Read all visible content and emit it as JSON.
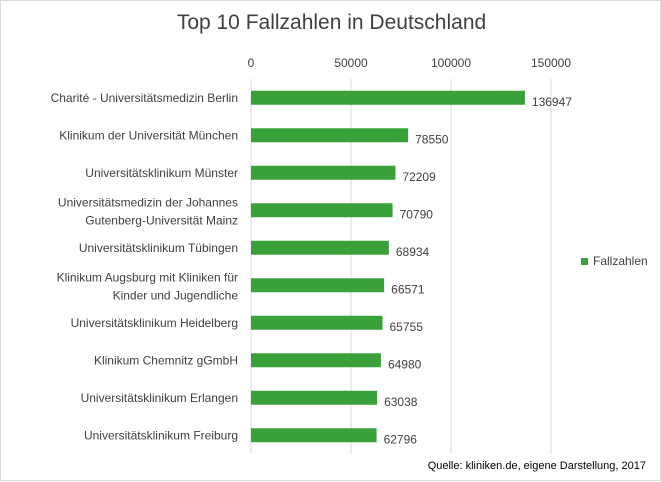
{
  "chart_data": {
    "type": "bar",
    "orientation": "horizontal",
    "title": "Top 10 Fallzahlen in Deutschland",
    "categories": [
      "Charité - Universitätsmedizin Berlin",
      "Klinikum der Universität München",
      "Universitätsklinikum Münster",
      "Universitätsmedizin der Johannes Gutenberg-Universität Mainz",
      "Universitätsklinikum Tübingen",
      "Klinikum Augsburg mit Kliniken für Kinder und Jugendliche",
      "Universitätsklinikum Heidelberg",
      "Klinikum Chemnitz gGmbH",
      "Universitätsklinikum Erlangen",
      "Universitätsklinikum Freiburg"
    ],
    "category_lines": [
      [
        "Charité - Universitätsmedizin Berlin"
      ],
      [
        "Klinikum der Universität München"
      ],
      [
        "Universitätsklinikum Münster"
      ],
      [
        "Universitätsmedizin der Johannes",
        "Gutenberg-Universität Mainz"
      ],
      [
        "Universitätsklinikum Tübingen"
      ],
      [
        "Klinikum Augsburg mit Kliniken für",
        "Kinder und Jugendliche"
      ],
      [
        "Universitätsklinikum Heidelberg"
      ],
      [
        "Klinikum Chemnitz gGmbH"
      ],
      [
        "Universitätsklinikum Erlangen"
      ],
      [
        "Universitätsklinikum Freiburg"
      ]
    ],
    "series": [
      {
        "name": "Fallzahlen",
        "values": [
          136947,
          78550,
          72209,
          70790,
          68934,
          66571,
          65755,
          64980,
          63038,
          62796
        ]
      }
    ],
    "x_ticks": [
      "0",
      "50000",
      "100000",
      "150000"
    ],
    "xlim": [
      0,
      150000
    ],
    "x_axis_position": "top",
    "grid": true,
    "legend_position": "right",
    "bar_color": "#3aa03a",
    "grid_color": "#d9d9d9"
  },
  "source": "Quelle: kliniken.de, eigene Darstellung, 2017"
}
